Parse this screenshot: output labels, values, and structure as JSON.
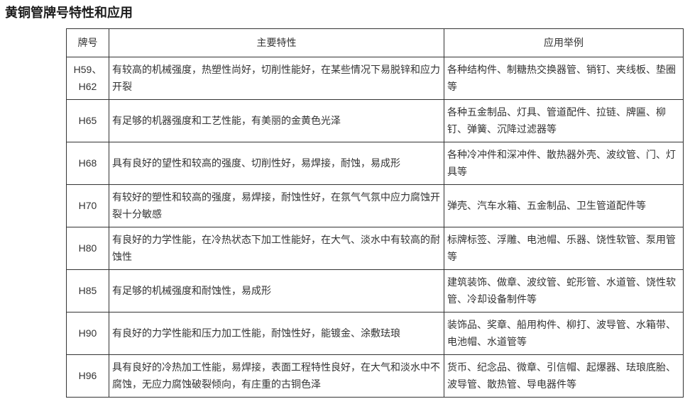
{
  "page": {
    "title": "黄铜管牌号特性和应用"
  },
  "table": {
    "headers": [
      "牌号",
      "主要特性",
      "应用举例"
    ],
    "rows": [
      {
        "grade": "H59、H62",
        "features": "有较高的机械强度，热塑性尚好，切削性能好，在某些情况下易脱锌和应力开裂",
        "applications": "各种结构件、制糖热交换器管、销钉、夹线板、垫圈等"
      },
      {
        "grade": "H65",
        "features": "有足够的机器强度和工艺性能，有美丽的金黄色光泽",
        "applications": "各种五金制品、灯具、管道配件、拉链、牌匾、柳钉、弹簧、沉降过滤器等"
      },
      {
        "grade": "H68",
        "features": "具有良好的望性和较高的强度、切削性好，易焊接，耐蚀，易成形",
        "applications": "各种冷冲件和深冲件、散热器外壳、波纹管、门、灯具等"
      },
      {
        "grade": "H70",
        "features": "有较好的塑性和较高的强度，易焊接，耐蚀性好，在氛气气氛中应力腐蚀开裂十分敏感",
        "applications": "弹壳、汽车水箱、五金制品、卫生管道配件等"
      },
      {
        "grade": "H80",
        "features": "有良好的力学性能，在冷热状态下加工性能好，在大气、淡水中有较高的耐蚀性",
        "applications": "标牌标签、浮雕、电池帽、乐器、饶性软管、泵用管等"
      },
      {
        "grade": "H85",
        "features": "有足够的机械强度和耐蚀性，易成形",
        "applications": "建筑装饰、做章、波纹管、蛇形管、水道管、饶性软管、冷却设备制件等"
      },
      {
        "grade": "H90",
        "features": "有良好的力学性能和压力加工性能，耐蚀性好，能镀金、涂敷珐琅",
        "applications": "装饰品、奖章、船用构件、柳打、波导管、水箱带、电池帽、水道管等"
      },
      {
        "grade": "H96",
        "features": "具有良好的冷热加工性能，易焊接，表面工程特性良好，在大气和淡水中不腐蚀，无应力腐蚀破裂倾向，有庄重的古铜色泽",
        "applications": "货币、纪念品、微章、引信帽、起爆器、珐琅底胎、波导管、散热管、导电器件等"
      }
    ]
  }
}
